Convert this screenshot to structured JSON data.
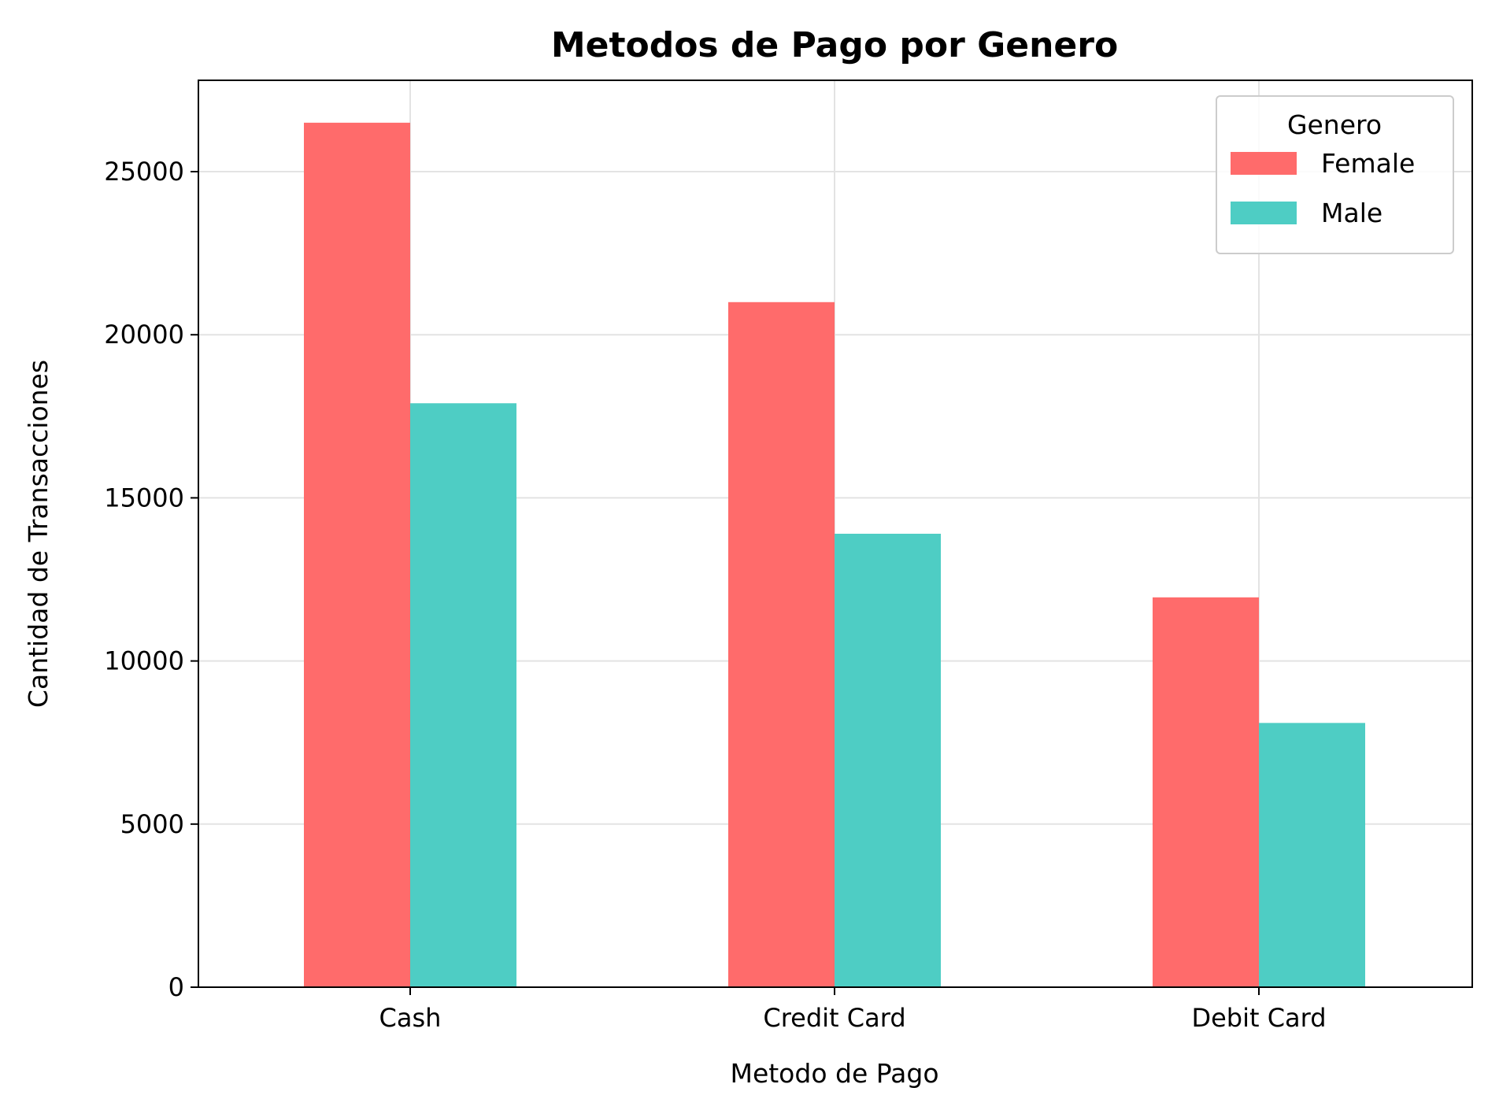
{
  "chart_data": {
    "type": "bar",
    "title": "Metodos de Pago por Genero",
    "xlabel": "Metodo de Pago",
    "ylabel": "Cantidad de Transacciones",
    "categories": [
      "Cash",
      "Credit Card",
      "Debit Card"
    ],
    "series": [
      {
        "name": "Female",
        "color": "#ff6b6b",
        "values": [
          26500,
          21000,
          11950
        ]
      },
      {
        "name": "Male",
        "color": "#4ecdc4",
        "values": [
          17900,
          13900,
          8100
        ]
      }
    ],
    "ylim": [
      0,
      27800
    ],
    "yticks": [
      0,
      5000,
      10000,
      15000,
      20000,
      25000
    ],
    "grid": true,
    "legend": {
      "title": "Genero",
      "placement": "top-right"
    }
  }
}
